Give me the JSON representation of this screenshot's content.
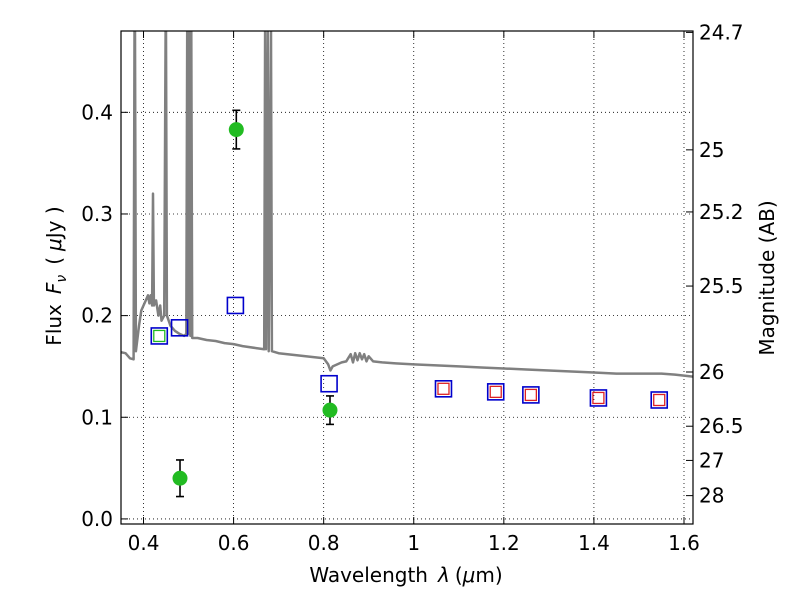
{
  "chart_data": {
    "type": "scatter",
    "xlabel_text": "Wavelength",
    "xlabel_symbol": "λ",
    "xlabel_unit_open": "(",
    "xlabel_unit_mu": "μ",
    "xlabel_unit_rest": "m)",
    "ylabel_text": "Flux",
    "ylabel_symbol": "F",
    "ylabel_subscript": "ν",
    "ylabel_unit_open": "(",
    "ylabel_unit_mu": "μ",
    "ylabel_unit_rest": "Jy )",
    "y2label": "Magnitude (AB)",
    "xlim": [
      0.35,
      1.62
    ],
    "ylim": [
      -0.005,
      0.48
    ],
    "grid": true,
    "x_ticks": [
      {
        "value": 0.4,
        "label": "0.4"
      },
      {
        "value": 0.6,
        "label": "0.6"
      },
      {
        "value": 0.8,
        "label": "0.8"
      },
      {
        "value": 1.0,
        "label": "1"
      },
      {
        "value": 1.2,
        "label": "1.2"
      },
      {
        "value": 1.4,
        "label": "1.4"
      },
      {
        "value": 1.6,
        "label": "1.6"
      }
    ],
    "y_ticks": [
      {
        "value": 0.0,
        "label": "0.0"
      },
      {
        "value": 0.1,
        "label": "0.1"
      },
      {
        "value": 0.2,
        "label": "0.2"
      },
      {
        "value": 0.3,
        "label": "0.3"
      },
      {
        "value": 0.4,
        "label": "0.4"
      }
    ],
    "y2_ticks": [
      {
        "value": 24.7,
        "label": "24.7"
      },
      {
        "value": 25.0,
        "label": "25"
      },
      {
        "value": 25.2,
        "label": "25.2"
      },
      {
        "value": 25.5,
        "label": "25.5"
      },
      {
        "value": 26.0,
        "label": "26"
      },
      {
        "value": 26.5,
        "label": "26.5"
      },
      {
        "value": 27.0,
        "label": "27"
      },
      {
        "value": 28.0,
        "label": "28"
      }
    ],
    "observed_points": {
      "name": "observed",
      "color": "#22bb22",
      "points": [
        {
          "x": 0.481,
          "y": 0.04,
          "err": 0.018
        },
        {
          "x": 0.606,
          "y": 0.383,
          "err": 0.019
        },
        {
          "x": 0.814,
          "y": 0.107,
          "err": 0.014
        }
      ]
    },
    "model_squares": {
      "name": "model",
      "color": "#0000cc",
      "points": [
        {
          "x": 0.435,
          "y": 0.18
        },
        {
          "x": 0.48,
          "y": 0.188
        },
        {
          "x": 0.604,
          "y": 0.21
        },
        {
          "x": 0.812,
          "y": 0.133
        },
        {
          "x": 1.066,
          "y": 0.128
        },
        {
          "x": 1.182,
          "y": 0.125
        },
        {
          "x": 1.26,
          "y": 0.122
        },
        {
          "x": 1.41,
          "y": 0.119
        },
        {
          "x": 1.545,
          "y": 0.117
        }
      ]
    },
    "inner_squares": {
      "green_color": "#22bb22",
      "red_color": "#dd2222",
      "green_points": [
        {
          "x": 0.435,
          "y": 0.18
        }
      ],
      "red_points": [
        {
          "x": 1.066,
          "y": 0.128
        },
        {
          "x": 1.182,
          "y": 0.125
        },
        {
          "x": 1.26,
          "y": 0.122
        },
        {
          "x": 1.41,
          "y": 0.119
        },
        {
          "x": 1.545,
          "y": 0.117
        }
      ]
    },
    "spectrum": {
      "name": "model spectrum",
      "color": "#808080",
      "points": [
        [
          0.35,
          0.164
        ],
        [
          0.36,
          0.163
        ],
        [
          0.37,
          0.158
        ],
        [
          0.378,
          0.157
        ],
        [
          0.38,
          0.48
        ],
        [
          0.381,
          0.48
        ],
        [
          0.383,
          0.165
        ],
        [
          0.39,
          0.19
        ],
        [
          0.395,
          0.205
        ],
        [
          0.4,
          0.21
        ],
        [
          0.405,
          0.215
        ],
        [
          0.41,
          0.22
        ],
        [
          0.413,
          0.212
        ],
        [
          0.416,
          0.22
        ],
        [
          0.419,
          0.21
        ],
        [
          0.421,
          0.32
        ],
        [
          0.423,
          0.21
        ],
        [
          0.428,
          0.215
        ],
        [
          0.433,
          0.2
        ],
        [
          0.437,
          0.21
        ],
        [
          0.44,
          0.195
        ],
        [
          0.446,
          0.2
        ],
        [
          0.449,
          0.48
        ],
        [
          0.45,
          0.48
        ],
        [
          0.452,
          0.2
        ],
        [
          0.46,
          0.19
        ],
        [
          0.47,
          0.185
        ],
        [
          0.48,
          0.182
        ],
        [
          0.49,
          0.18
        ],
        [
          0.495,
          0.182
        ],
        [
          0.497,
          0.48
        ],
        [
          0.499,
          0.182
        ],
        [
          0.502,
          0.48
        ],
        [
          0.504,
          0.18
        ],
        [
          0.506,
          0.48
        ],
        [
          0.508,
          0.178
        ],
        [
          0.52,
          0.178
        ],
        [
          0.54,
          0.176
        ],
        [
          0.56,
          0.175
        ],
        [
          0.58,
          0.173
        ],
        [
          0.6,
          0.172
        ],
        [
          0.62,
          0.17
        ],
        [
          0.65,
          0.168
        ],
        [
          0.668,
          0.167
        ],
        [
          0.67,
          0.48
        ],
        [
          0.672,
          0.167
        ],
        [
          0.676,
          0.48
        ],
        [
          0.678,
          0.165
        ],
        [
          0.683,
          0.48
        ],
        [
          0.685,
          0.165
        ],
        [
          0.7,
          0.163
        ],
        [
          0.72,
          0.162
        ],
        [
          0.74,
          0.161
        ],
        [
          0.76,
          0.16
        ],
        [
          0.78,
          0.159
        ],
        [
          0.8,
          0.158
        ],
        [
          0.81,
          0.152
        ],
        [
          0.815,
          0.146
        ],
        [
          0.82,
          0.15
        ],
        [
          0.83,
          0.152
        ],
        [
          0.84,
          0.154
        ],
        [
          0.85,
          0.155
        ],
        [
          0.86,
          0.162
        ],
        [
          0.865,
          0.154
        ],
        [
          0.87,
          0.163
        ],
        [
          0.875,
          0.156
        ],
        [
          0.88,
          0.163
        ],
        [
          0.885,
          0.157
        ],
        [
          0.89,
          0.162
        ],
        [
          0.895,
          0.155
        ],
        [
          0.9,
          0.16
        ],
        [
          0.91,
          0.155
        ],
        [
          0.93,
          0.154
        ],
        [
          0.96,
          0.153
        ],
        [
          1.0,
          0.152
        ],
        [
          1.05,
          0.151
        ],
        [
          1.1,
          0.15
        ],
        [
          1.15,
          0.149
        ],
        [
          1.2,
          0.148
        ],
        [
          1.25,
          0.147
        ],
        [
          1.3,
          0.146
        ],
        [
          1.35,
          0.145
        ],
        [
          1.4,
          0.144
        ],
        [
          1.45,
          0.143
        ],
        [
          1.5,
          0.143
        ],
        [
          1.55,
          0.143
        ],
        [
          1.58,
          0.142
        ],
        [
          1.62,
          0.14
        ]
      ]
    }
  }
}
